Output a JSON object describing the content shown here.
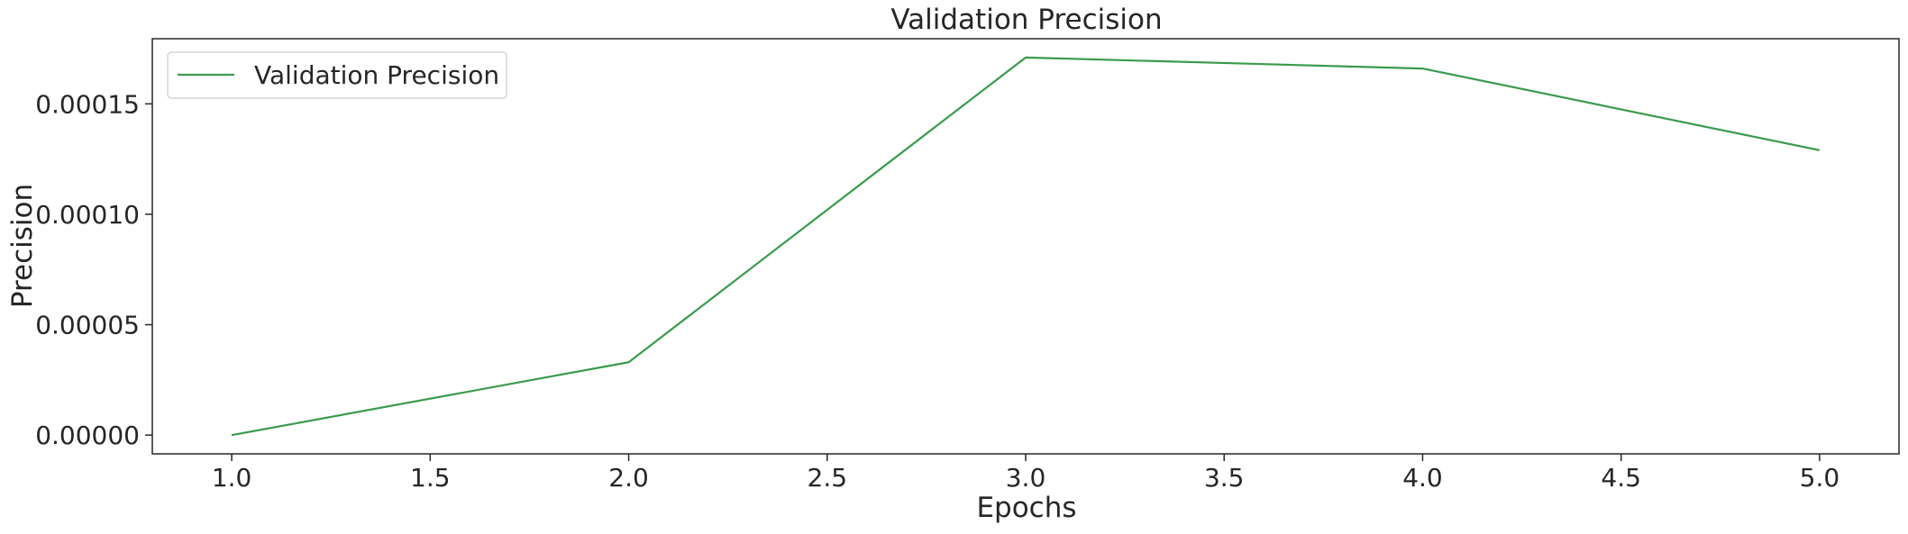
{
  "chart_data": {
    "type": "line",
    "title": "Validation Precision",
    "xlabel": "Epochs",
    "ylabel": "Precision",
    "x": [
      1.0,
      2.0,
      3.0,
      4.0,
      5.0
    ],
    "series": [
      {
        "name": "Validation Precision",
        "color": "#3a9b4c",
        "values": [
          0.0,
          3.3e-05,
          0.000171,
          0.000166,
          0.000129
        ]
      }
    ],
    "xlim": [
      0.8,
      5.2
    ],
    "ylim": [
      -8.5e-06,
      0.0001795
    ],
    "xticks": [
      1.0,
      1.5,
      2.0,
      2.5,
      3.0,
      3.5,
      4.0,
      4.5,
      5.0
    ],
    "xtick_labels": [
      "1.0",
      "1.5",
      "2.0",
      "2.5",
      "3.0",
      "3.5",
      "4.0",
      "4.5",
      "5.0"
    ],
    "yticks": [
      0.0,
      5e-05,
      0.0001,
      0.00015
    ],
    "ytick_labels": [
      "0.00000",
      "0.00005",
      "0.00010",
      "0.00015"
    ],
    "grid": false,
    "legend_position": "top-left"
  }
}
